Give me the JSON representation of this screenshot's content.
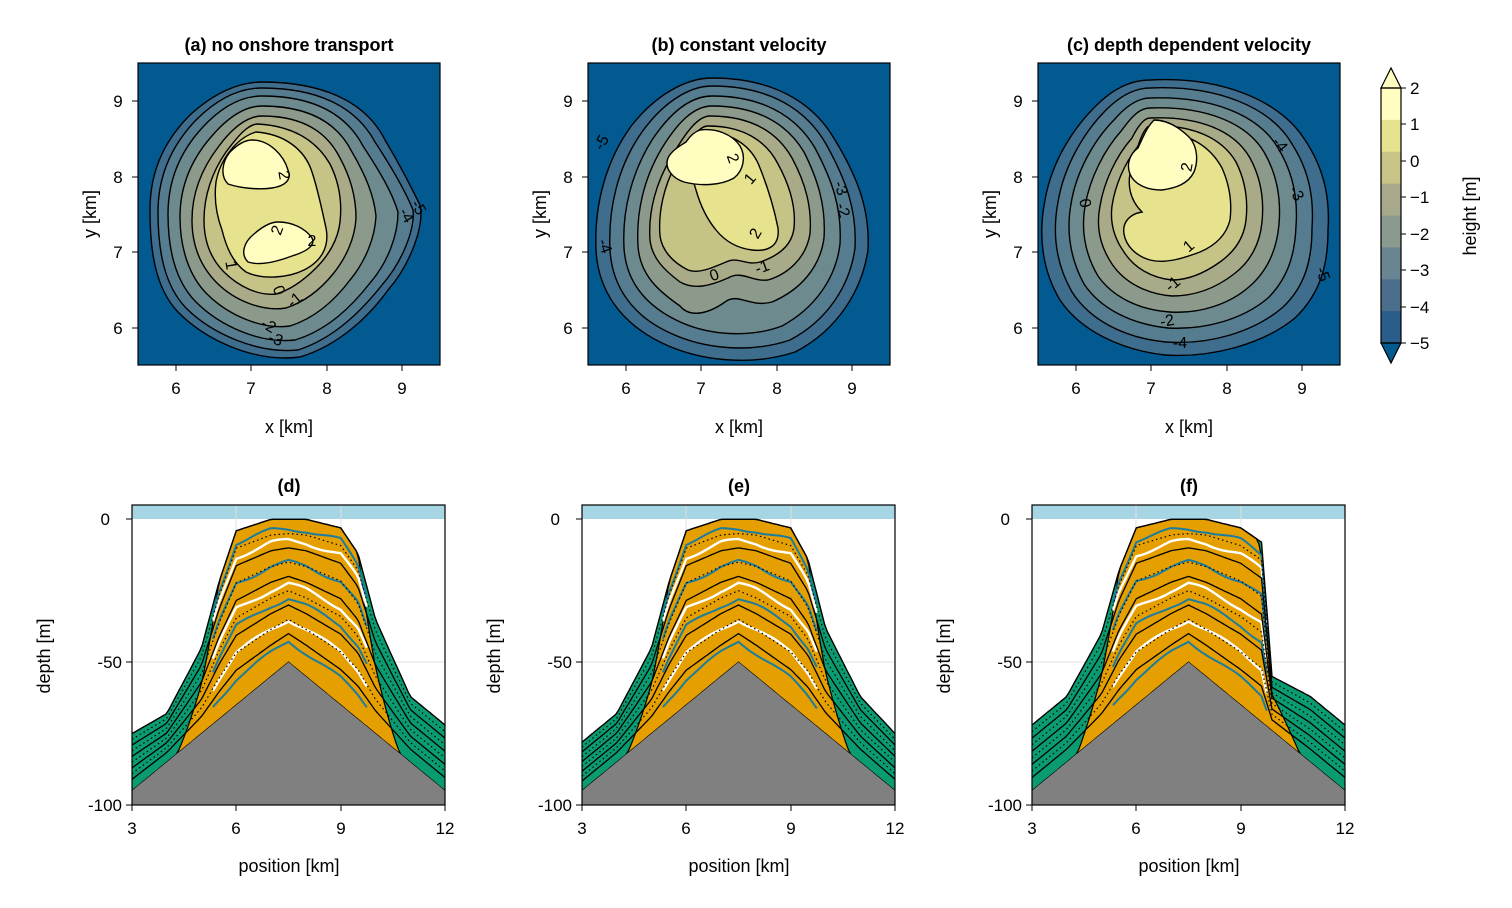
{
  "chart_data": [
    {
      "type": "heatmap",
      "title": "(a) no onshore transport",
      "xlabel": "x [km]",
      "ylabel": "y [km]",
      "xlim": [
        5.5,
        9.5
      ],
      "ylim": [
        5.5,
        9.5
      ],
      "xticks": [
        "6",
        "7",
        "8",
        "9"
      ],
      "yticks": [
        "6",
        "7",
        "8",
        "9"
      ],
      "contour_labels": [
        "2",
        "2",
        "2",
        "1",
        "0",
        "-1",
        "-2",
        "-3",
        "-4",
        "-5"
      ]
    },
    {
      "type": "heatmap",
      "title": "(b) constant velocity",
      "xlabel": "x [km]",
      "ylabel": "y [km]",
      "xlim": [
        5.5,
        9.5
      ],
      "ylim": [
        5.5,
        9.5
      ],
      "xticks": [
        "6",
        "7",
        "8",
        "9"
      ],
      "yticks": [
        "6",
        "7",
        "8",
        "9"
      ],
      "contour_labels": [
        "2",
        "1",
        "2",
        "0",
        "-1",
        "-2",
        "-3",
        "-4",
        "-5"
      ]
    },
    {
      "type": "heatmap",
      "title": "(c) depth dependent velocity",
      "xlabel": "x [km]",
      "ylabel": "y [km]",
      "xlim": [
        5.5,
        9.5
      ],
      "ylim": [
        5.5,
        9.5
      ],
      "xticks": [
        "6",
        "7",
        "8",
        "9"
      ],
      "yticks": [
        "6",
        "7",
        "8",
        "9"
      ],
      "contour_labels": [
        "2",
        "0",
        "1",
        "-1",
        "-2",
        "-3",
        "-4",
        "-5"
      ]
    },
    {
      "type": "area",
      "title": "(d)",
      "xlabel": "position [km]",
      "ylabel": "depth [m]",
      "xlim": [
        3,
        12
      ],
      "ylim": [
        -100,
        5
      ],
      "xticks": [
        "3",
        "6",
        "9",
        "12"
      ],
      "yticks": [
        "0",
        "-50",
        "-100"
      ],
      "surface": [
        [
          3,
          -75
        ],
        [
          4,
          -68
        ],
        [
          5,
          -45
        ],
        [
          5.5,
          -22
        ],
        [
          6,
          -4
        ],
        [
          7,
          0
        ],
        [
          8,
          0
        ],
        [
          9,
          -3
        ],
        [
          9.5,
          -12
        ],
        [
          10,
          -35
        ],
        [
          11,
          -62
        ],
        [
          12,
          -72
        ]
      ],
      "basement": [
        [
          3,
          -95
        ],
        [
          7.5,
          -50
        ],
        [
          12,
          -95
        ]
      ]
    },
    {
      "type": "area",
      "title": "(e)",
      "xlabel": "position [km]",
      "ylabel": "depth [m]",
      "xlim": [
        3,
        12
      ],
      "ylim": [
        -100,
        5
      ],
      "xticks": [
        "3",
        "6",
        "9",
        "12"
      ],
      "yticks": [
        "0",
        "-50",
        "-100"
      ],
      "surface": [
        [
          3,
          -78
        ],
        [
          4,
          -68
        ],
        [
          5,
          -45
        ],
        [
          5.5,
          -22
        ],
        [
          6,
          -4
        ],
        [
          7,
          0
        ],
        [
          8,
          0
        ],
        [
          9,
          -3
        ],
        [
          9.5,
          -14
        ],
        [
          10,
          -38
        ],
        [
          11,
          -62
        ],
        [
          12,
          -75
        ]
      ],
      "basement": [
        [
          3,
          -95
        ],
        [
          7.5,
          -50
        ],
        [
          12,
          -95
        ]
      ]
    },
    {
      "type": "area",
      "title": "(f)",
      "xlabel": "position [km]",
      "ylabel": "depth [m]",
      "xlim": [
        3,
        12
      ],
      "ylim": [
        -100,
        5
      ],
      "xticks": [
        "3",
        "6",
        "9",
        "12"
      ],
      "yticks": [
        "0",
        "-50",
        "-100"
      ],
      "surface": [
        [
          3,
          -72
        ],
        [
          4,
          -62
        ],
        [
          5,
          -40
        ],
        [
          5.5,
          -18
        ],
        [
          6,
          -3
        ],
        [
          7,
          0
        ],
        [
          8,
          0
        ],
        [
          9,
          -3
        ],
        [
          9.6,
          -8
        ],
        [
          9.9,
          -55
        ],
        [
          11,
          -62
        ],
        [
          12,
          -72
        ]
      ],
      "basement": [
        [
          3,
          -95
        ],
        [
          7.5,
          -50
        ],
        [
          12,
          -95
        ]
      ]
    }
  ],
  "colorbar": {
    "label": "height [m]",
    "ticks": [
      "2",
      "1",
      "0",
      "−1",
      "−2",
      "−3",
      "−4",
      "−5"
    ],
    "levels": [
      2,
      1,
      0,
      -1,
      -2,
      -3,
      -4,
      -5
    ],
    "colors": [
      "#fffdbf",
      "#e6e28d",
      "#c8c485",
      "#a8a98a",
      "#8a9a8e",
      "#6a8592",
      "#4a6e8c",
      "#2a5d8a"
    ]
  },
  "colors": {
    "water": "#a6d5e3",
    "sediment_a": "#e59f00",
    "sediment_b": "#009e73",
    "sediment_c": "#1a7da0",
    "basement": "#808080",
    "sea": "#025a91"
  }
}
